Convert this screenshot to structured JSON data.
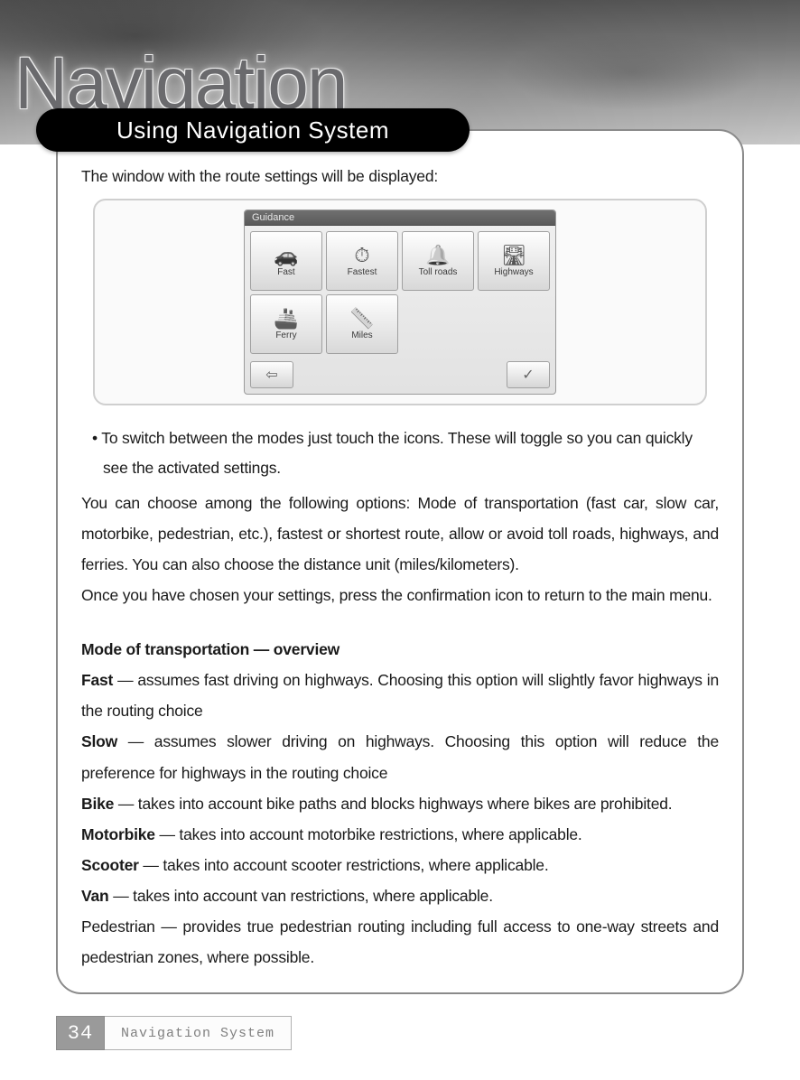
{
  "banner": {
    "title": "Navigation"
  },
  "section_tab": "Using Navigation System",
  "intro": "The window with the route settings will be displayed:",
  "screenshot": {
    "titlebar": "Guidance",
    "tiles": [
      {
        "icon": "🚗",
        "label": "Fast"
      },
      {
        "icon": "⏱",
        "label": "Fastest"
      },
      {
        "icon": "🔔",
        "label": "Toll roads"
      },
      {
        "icon": "🛣",
        "label": "Highways"
      },
      {
        "icon": "🚢",
        "label": "Ferry"
      },
      {
        "icon": "📏",
        "label": "Miles"
      }
    ],
    "back_icon": "⇦",
    "ok_icon": "✓"
  },
  "bullet": "• To switch between the modes just touch the icons. These will toggle so you can quickly see the activated settings.",
  "para1": "You can choose among the following options: Mode of transportation (fast car, slow car, motorbike, pedestrian, etc.), fastest or shortest route, allow or avoid toll roads, highways, and ferries. You can also choose the distance unit (miles/kilometers).",
  "para2": "Once you have chosen your settings, press the confirmation icon to return to the main menu.",
  "overview_heading": "Mode of transportation — overview",
  "modes": {
    "fast": {
      "label": "Fast",
      "text": " — assumes fast driving on highways. Choosing this option will slightly favor highways in the routing choice"
    },
    "slow": {
      "label": "Slow",
      "text": " — assumes slower driving on highways. Choosing this option will reduce the preference for highways in the routing choice"
    },
    "bike": {
      "label": "Bike",
      "text": " — takes into account bike paths and blocks highways where bikes are prohibited."
    },
    "motorbike": {
      "label": "Motorbike",
      "text": " — takes into account motorbike restrictions, where applicable."
    },
    "scooter": {
      "label": "Scooter",
      "text": " — takes into account scooter restrictions, where applicable."
    },
    "van": {
      "label": "Van",
      "text": " — takes into account van restrictions, where applicable."
    },
    "pedestrian": "Pedestrian — provides true pedestrian routing including full access to one-way streets and pedestrian zones, where possible."
  },
  "footer": {
    "page_number": "34",
    "label": "Navigation System"
  },
  "colors": {
    "tab_bg": "#000000",
    "tab_text": "#ffffff",
    "panel_border": "#8a8a8a",
    "body_text": "#1a1a1a",
    "footer_num_bg": "#9a9a9a",
    "footer_label_text": "#808080"
  }
}
